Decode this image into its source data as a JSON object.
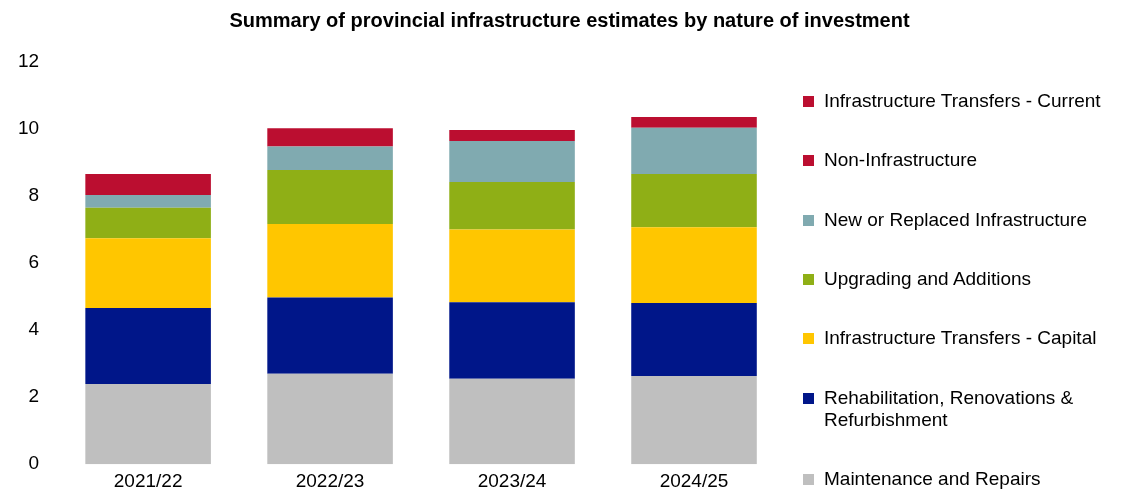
{
  "chart_data": {
    "type": "bar",
    "title": "Summary of provincial infrastructure estimates by nature of investment",
    "categories": [
      "2021/22",
      "2022/23",
      "2023/24",
      "2024/25"
    ],
    "stacked": true,
    "ylim": [
      0,
      12
    ],
    "yticks": [
      0,
      2,
      4,
      6,
      8,
      10,
      12
    ],
    "grid": false,
    "legend": "right",
    "series": [
      {
        "name": "Maintenance and Repairs",
        "color": "#bfbfbf",
        "values": [
          2.39,
          2.7,
          2.55,
          2.63
        ]
      },
      {
        "name": "Rehabilitation, Renovations & Refurbishment",
        "color": "#001689",
        "values": [
          2.27,
          2.27,
          2.28,
          2.18
        ]
      },
      {
        "name": "Infrastructure Transfers - Capital",
        "color": "#ffc600",
        "values": [
          2.08,
          2.2,
          2.17,
          2.26
        ]
      },
      {
        "name": "Upgrading and Additions",
        "color": "#8faf16",
        "values": [
          0.91,
          1.61,
          1.42,
          1.59
        ]
      },
      {
        "name": "New or Replaced Infrastructure",
        "color": "#80aab0",
        "values": [
          0.38,
          0.7,
          1.22,
          1.38
        ]
      },
      {
        "name": "Non-Infrastructure",
        "color": "#bb0e30",
        "values": [
          0.63,
          0.54,
          0.33,
          0.32
        ]
      },
      {
        "name": "Infrastructure Transfers - Current",
        "color": "#bb0e30",
        "values": [
          0,
          0,
          0,
          0
        ]
      }
    ]
  }
}
